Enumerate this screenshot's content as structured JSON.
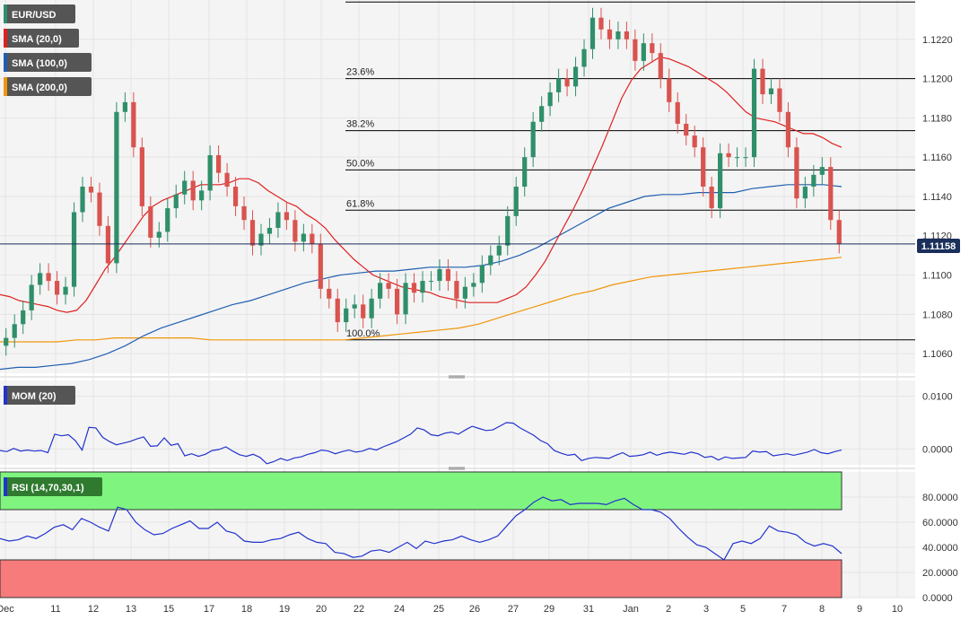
{
  "instrument": "EUR/USD",
  "legend_main": [
    "EUR/USD",
    "SMA (20,0)",
    "SMA (100,0)",
    "SMA (200,0)"
  ],
  "legend_mom": "MOM (20)",
  "legend_rsi": "RSI (14,70,30,1)",
  "last_price_label": "1.11158",
  "colors": {
    "up": "#2f8f6a",
    "down": "#d9534f",
    "sma20": "#e02020",
    "sma100": "#1f5fb0",
    "sma200": "#f0960a",
    "indicator": "#2233cc",
    "rsi_over": "#7ff47f",
    "rsi_under": "#f77b7b",
    "bg": "#f4f4f4",
    "grid": "#e4e4e4"
  },
  "chart_data": [
    {
      "type": "candlestick",
      "title": "EUR/USD",
      "x_tick_labels": [
        "Dec",
        "11",
        "12",
        "13",
        "15",
        "17",
        "18",
        "19",
        "20",
        "22",
        "24",
        "25",
        "26",
        "27",
        "29",
        "31",
        "Jan",
        "2",
        "3",
        "5",
        "7",
        "8",
        "9",
        "10"
      ],
      "y_tick_labels": [
        "1.1060",
        "1.1080",
        "1.1100",
        "1.1120",
        "1.1140",
        "1.1160",
        "1.1180",
        "1.1200",
        "1.1220"
      ],
      "ylim": [
        1.105,
        1.124
      ],
      "grid": true,
      "legend_position": "top-left",
      "last_price": 1.11158,
      "fibonacci": {
        "levels": [
          {
            "label": "23.6%",
            "price": 1.12
          },
          {
            "label": "38.2%",
            "price": 1.11735
          },
          {
            "label": "50.0%",
            "price": 1.11535
          },
          {
            "label": "61.8%",
            "price": 1.1133
          },
          {
            "label": "100.0%",
            "price": 1.1067
          }
        ],
        "high": 1.1239
      },
      "close": [
        1.1068,
        1.1075,
        1.1082,
        1.1095,
        1.1101,
        1.1097,
        1.109,
        1.1094,
        1.1132,
        1.1145,
        1.1142,
        1.1125,
        1.1106,
        1.1183,
        1.1188,
        1.1165,
        1.1135,
        1.1119,
        1.1122,
        1.1134,
        1.1141,
        1.1148,
        1.1138,
        1.1143,
        1.1161,
        1.1152,
        1.1145,
        1.1135,
        1.1128,
        1.1115,
        1.1121,
        1.1124,
        1.1132,
        1.1128,
        1.1117,
        1.1121,
        1.1116,
        1.1093,
        1.1088,
        1.1076,
        1.1083,
        1.1085,
        1.1078,
        1.1088,
        1.1096,
        1.1093,
        1.108,
        1.1096,
        1.1091,
        1.1097,
        1.1097,
        1.1103,
        1.1097,
        1.1088,
        1.1094,
        1.1096,
        1.1105,
        1.111,
        1.1115,
        1.113,
        1.1145,
        1.116,
        1.1178,
        1.1186,
        1.1193,
        1.12,
        1.1196,
        1.1206,
        1.1215,
        1.1231,
        1.1225,
        1.122,
        1.1224,
        1.122,
        1.1209,
        1.1218,
        1.1213,
        1.12,
        1.1188,
        1.1177,
        1.1171,
        1.1165,
        1.1145,
        1.1134,
        1.1162,
        1.116,
        1.116,
        1.116,
        1.1205,
        1.1192,
        1.1195,
        1.1183,
        1.1165,
        1.1139,
        1.1145,
        1.1151,
        1.1155,
        1.1128,
        1.1116
      ],
      "sma20": [
        1.109,
        1.1089,
        1.1087,
        1.1086,
        1.1085,
        1.1084,
        1.1082,
        1.1081,
        1.1082,
        1.1087,
        1.1095,
        1.1103,
        1.1109,
        1.1116,
        1.1123,
        1.113,
        1.1135,
        1.1138,
        1.114,
        1.1142,
        1.1144,
        1.1146,
        1.1146,
        1.1146,
        1.1147,
        1.1149,
        1.1149,
        1.1147,
        1.1143,
        1.114,
        1.1137,
        1.1135,
        1.1131,
        1.1128,
        1.1124,
        1.1118,
        1.1113,
        1.1108,
        1.1104,
        1.11,
        1.1098,
        1.1096,
        1.1094,
        1.1093,
        1.1092,
        1.1091,
        1.1089,
        1.1088,
        1.1087,
        1.1086,
        1.1086,
        1.1086,
        1.1086,
        1.1088,
        1.109,
        1.1094,
        1.11,
        1.1107,
        1.1116,
        1.1125,
        1.1134,
        1.1144,
        1.1155,
        1.1166,
        1.1178,
        1.119,
        1.1199,
        1.1205,
        1.1208,
        1.1211,
        1.121,
        1.1208,
        1.1206,
        1.1203,
        1.12,
        1.1197,
        1.1193,
        1.1188,
        1.1183,
        1.118,
        1.1179,
        1.1178,
        1.1176,
        1.1174,
        1.1172,
        1.1172,
        1.117,
        1.1167,
        1.1165
      ],
      "sma100": [
        1.1052,
        1.1053,
        1.1053,
        1.1054,
        1.1055,
        1.1057,
        1.106,
        1.1064,
        1.1069,
        1.1073,
        1.1076,
        1.1079,
        1.1082,
        1.1085,
        1.1087,
        1.109,
        1.1093,
        1.1096,
        1.1098,
        1.11,
        1.1101,
        1.1102,
        1.1102,
        1.1103,
        1.1104,
        1.1104,
        1.1104,
        1.1105,
        1.1107,
        1.111,
        1.1114,
        1.1119,
        1.1124,
        1.1129,
        1.1134,
        1.1137,
        1.114,
        1.1141,
        1.1141,
        1.1142,
        1.1142,
        1.1142,
        1.1144,
        1.1145,
        1.1146,
        1.1146,
        1.1146,
        1.1145
      ],
      "sma200": [
        1.1066,
        1.1066,
        1.1066,
        1.1066,
        1.1067,
        1.1067,
        1.1068,
        1.1068,
        1.1068,
        1.1068,
        1.1068,
        1.1067,
        1.1067,
        1.1067,
        1.1067,
        1.1067,
        1.1067,
        1.1067,
        1.1067,
        1.1068,
        1.1069,
        1.107,
        1.1071,
        1.1072,
        1.1073,
        1.1075,
        1.1078,
        1.1081,
        1.1084,
        1.1087,
        1.109,
        1.1092,
        1.1095,
        1.1097,
        1.1099,
        1.11,
        1.1101,
        1.1102,
        1.1103,
        1.1104,
        1.1105,
        1.1106,
        1.1107,
        1.1108,
        1.1109
      ]
    },
    {
      "type": "line",
      "title": "MOM (20)",
      "y_tick_labels": [
        "0.0100",
        "0.0000"
      ],
      "ylim": [
        -0.003,
        0.013
      ],
      "values": [
        -0.0003,
        -0.0005,
        0.0001,
        -0.0004,
        -0.0002,
        -0.0004,
        -0.0003,
        -0.0007,
        0.0028,
        0.0025,
        0.0027,
        0.0016,
        -0.0002,
        0.0041,
        0.004,
        0.0022,
        0.0014,
        0.0008,
        0.0011,
        0.0014,
        0.0019,
        0.0023,
        0.0005,
        0.0006,
        0.0021,
        0.0007,
        0.001,
        -0.0013,
        -0.0009,
        -0.0014,
        -0.001,
        -0.0003,
        -0.0001,
        0.0004,
        -0.0004,
        -0.0011,
        -0.0014,
        -0.001,
        -0.0016,
        -0.0028,
        -0.0024,
        -0.0018,
        -0.0022,
        -0.0017,
        -0.0015,
        -0.001,
        -0.0007,
        -0.0002,
        -0.0004,
        -0.0009,
        -0.0005,
        -0.0002,
        -0.0006,
        -0.0004,
        0.0001,
        -0.0002,
        0.0004,
        0.0009,
        0.0014,
        0.0021,
        0.0028,
        0.004,
        0.0036,
        0.0027,
        0.0025,
        0.003,
        0.0032,
        0.0028,
        0.0036,
        0.0043,
        0.0039,
        0.0035,
        0.0036,
        0.0043,
        0.005,
        0.0049,
        0.004,
        0.0033,
        0.0026,
        0.0016,
        0.001,
        -0.0003,
        -0.0008,
        -0.0012,
        -0.001,
        -0.0022,
        -0.0018,
        -0.0016,
        -0.0017,
        -0.0018,
        -0.0012,
        -0.0007,
        -0.0014,
        -0.0013,
        -0.0011,
        -0.0006,
        -0.0012,
        -0.0008,
        -0.0006,
        -0.0008,
        -0.001,
        -0.0006,
        -0.0009,
        -0.0016,
        -0.0014,
        -0.0021,
        -0.0015,
        -0.0018,
        -0.0017,
        -0.0016,
        -0.0004,
        -0.0006,
        -0.0005,
        -0.0013,
        -0.0011,
        -0.0009,
        -0.0012,
        -0.0009,
        -0.0006,
        -0.0001,
        -0.0007,
        -0.0009,
        -0.0005,
        -0.0002
      ]
    },
    {
      "type": "line",
      "title": "RSI (14,70,30,1)",
      "y_tick_labels": [
        "80.0000",
        "60.0000",
        "40.0000",
        "20.0000",
        "0.0000"
      ],
      "ylim": [
        0,
        100
      ],
      "overbought": 70,
      "oversold": 30,
      "values": [
        47,
        45,
        46,
        49,
        47,
        51,
        56,
        58,
        54,
        63,
        60,
        56,
        53,
        72,
        70,
        60,
        54,
        50,
        51,
        55,
        58,
        61,
        55,
        55,
        60,
        53,
        51,
        45,
        44,
        44,
        46,
        47,
        50,
        52,
        47,
        44,
        43,
        36,
        35,
        32,
        33,
        37,
        38,
        36,
        40,
        44,
        39,
        45,
        43,
        45,
        46,
        49,
        46,
        44,
        46,
        49,
        57,
        65,
        70,
        76,
        80,
        77,
        78,
        74,
        75,
        75,
        75,
        74,
        77,
        79,
        74,
        70,
        70,
        68,
        63,
        55,
        48,
        42,
        40,
        35,
        30,
        43,
        45,
        43,
        47,
        57,
        53,
        52,
        50,
        44,
        41,
        43,
        41,
        35
      ]
    }
  ]
}
